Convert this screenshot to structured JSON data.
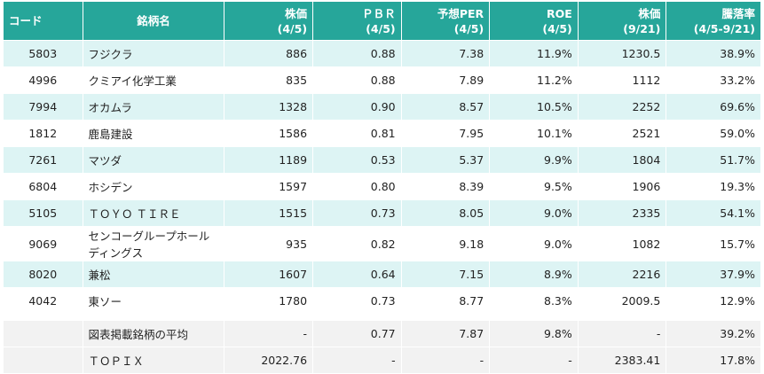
{
  "table": {
    "header": [
      "コード",
      "銘柄名",
      "株価\n(4/5)",
      "ＰＢＲ\n(4/5)",
      "予想PER\n(4/5)",
      "ROE\n(4/5)",
      "株価\n(9/21)",
      "騰落率\n(4/5-9/21)"
    ],
    "rows": [
      [
        "5803",
        "フジクラ",
        "886",
        "0.88",
        "7.38",
        "11.9%",
        "1230.5",
        "38.9%"
      ],
      [
        "4996",
        "クミアイ化学工業",
        "835",
        "0.88",
        "7.89",
        "11.2%",
        "1112",
        "33.2%"
      ],
      [
        "7994",
        "オカムラ",
        "1328",
        "0.90",
        "8.57",
        "10.5%",
        "2252",
        "69.6%"
      ],
      [
        "1812",
        "鹿島建設",
        "1586",
        "0.81",
        "7.95",
        "10.1%",
        "2521",
        "59.0%"
      ],
      [
        "7261",
        "マツダ",
        "1189",
        "0.53",
        "5.37",
        "9.9%",
        "1804",
        "51.7%"
      ],
      [
        "6804",
        "ホシデン",
        "1597",
        "0.80",
        "8.39",
        "9.5%",
        "1906",
        "19.3%"
      ],
      [
        "5105",
        "ＴＯＹＯ ＴＩＲＥ",
        "1515",
        "0.73",
        "8.05",
        "9.0%",
        "2335",
        "54.1%"
      ],
      [
        "9069",
        "センコーグループホールディングス",
        "935",
        "0.82",
        "9.18",
        "9.0%",
        "1082",
        "15.7%"
      ],
      [
        "8020",
        "兼松",
        "1607",
        "0.64",
        "7.15",
        "8.9%",
        "2216",
        "37.9%"
      ],
      [
        "4042",
        "東ソー",
        "1780",
        "0.73",
        "8.77",
        "8.3%",
        "2009.5",
        "12.9%"
      ]
    ],
    "summary": [
      [
        "図表掲載銘柄の平均",
        "-",
        "0.77",
        "7.87",
        "9.8%",
        "-",
        "39.2%"
      ],
      [
        "ＴＯＰＩＸ",
        "2022.76",
        "-",
        "-",
        "-",
        "2383.41",
        "17.8%"
      ]
    ]
  }
}
